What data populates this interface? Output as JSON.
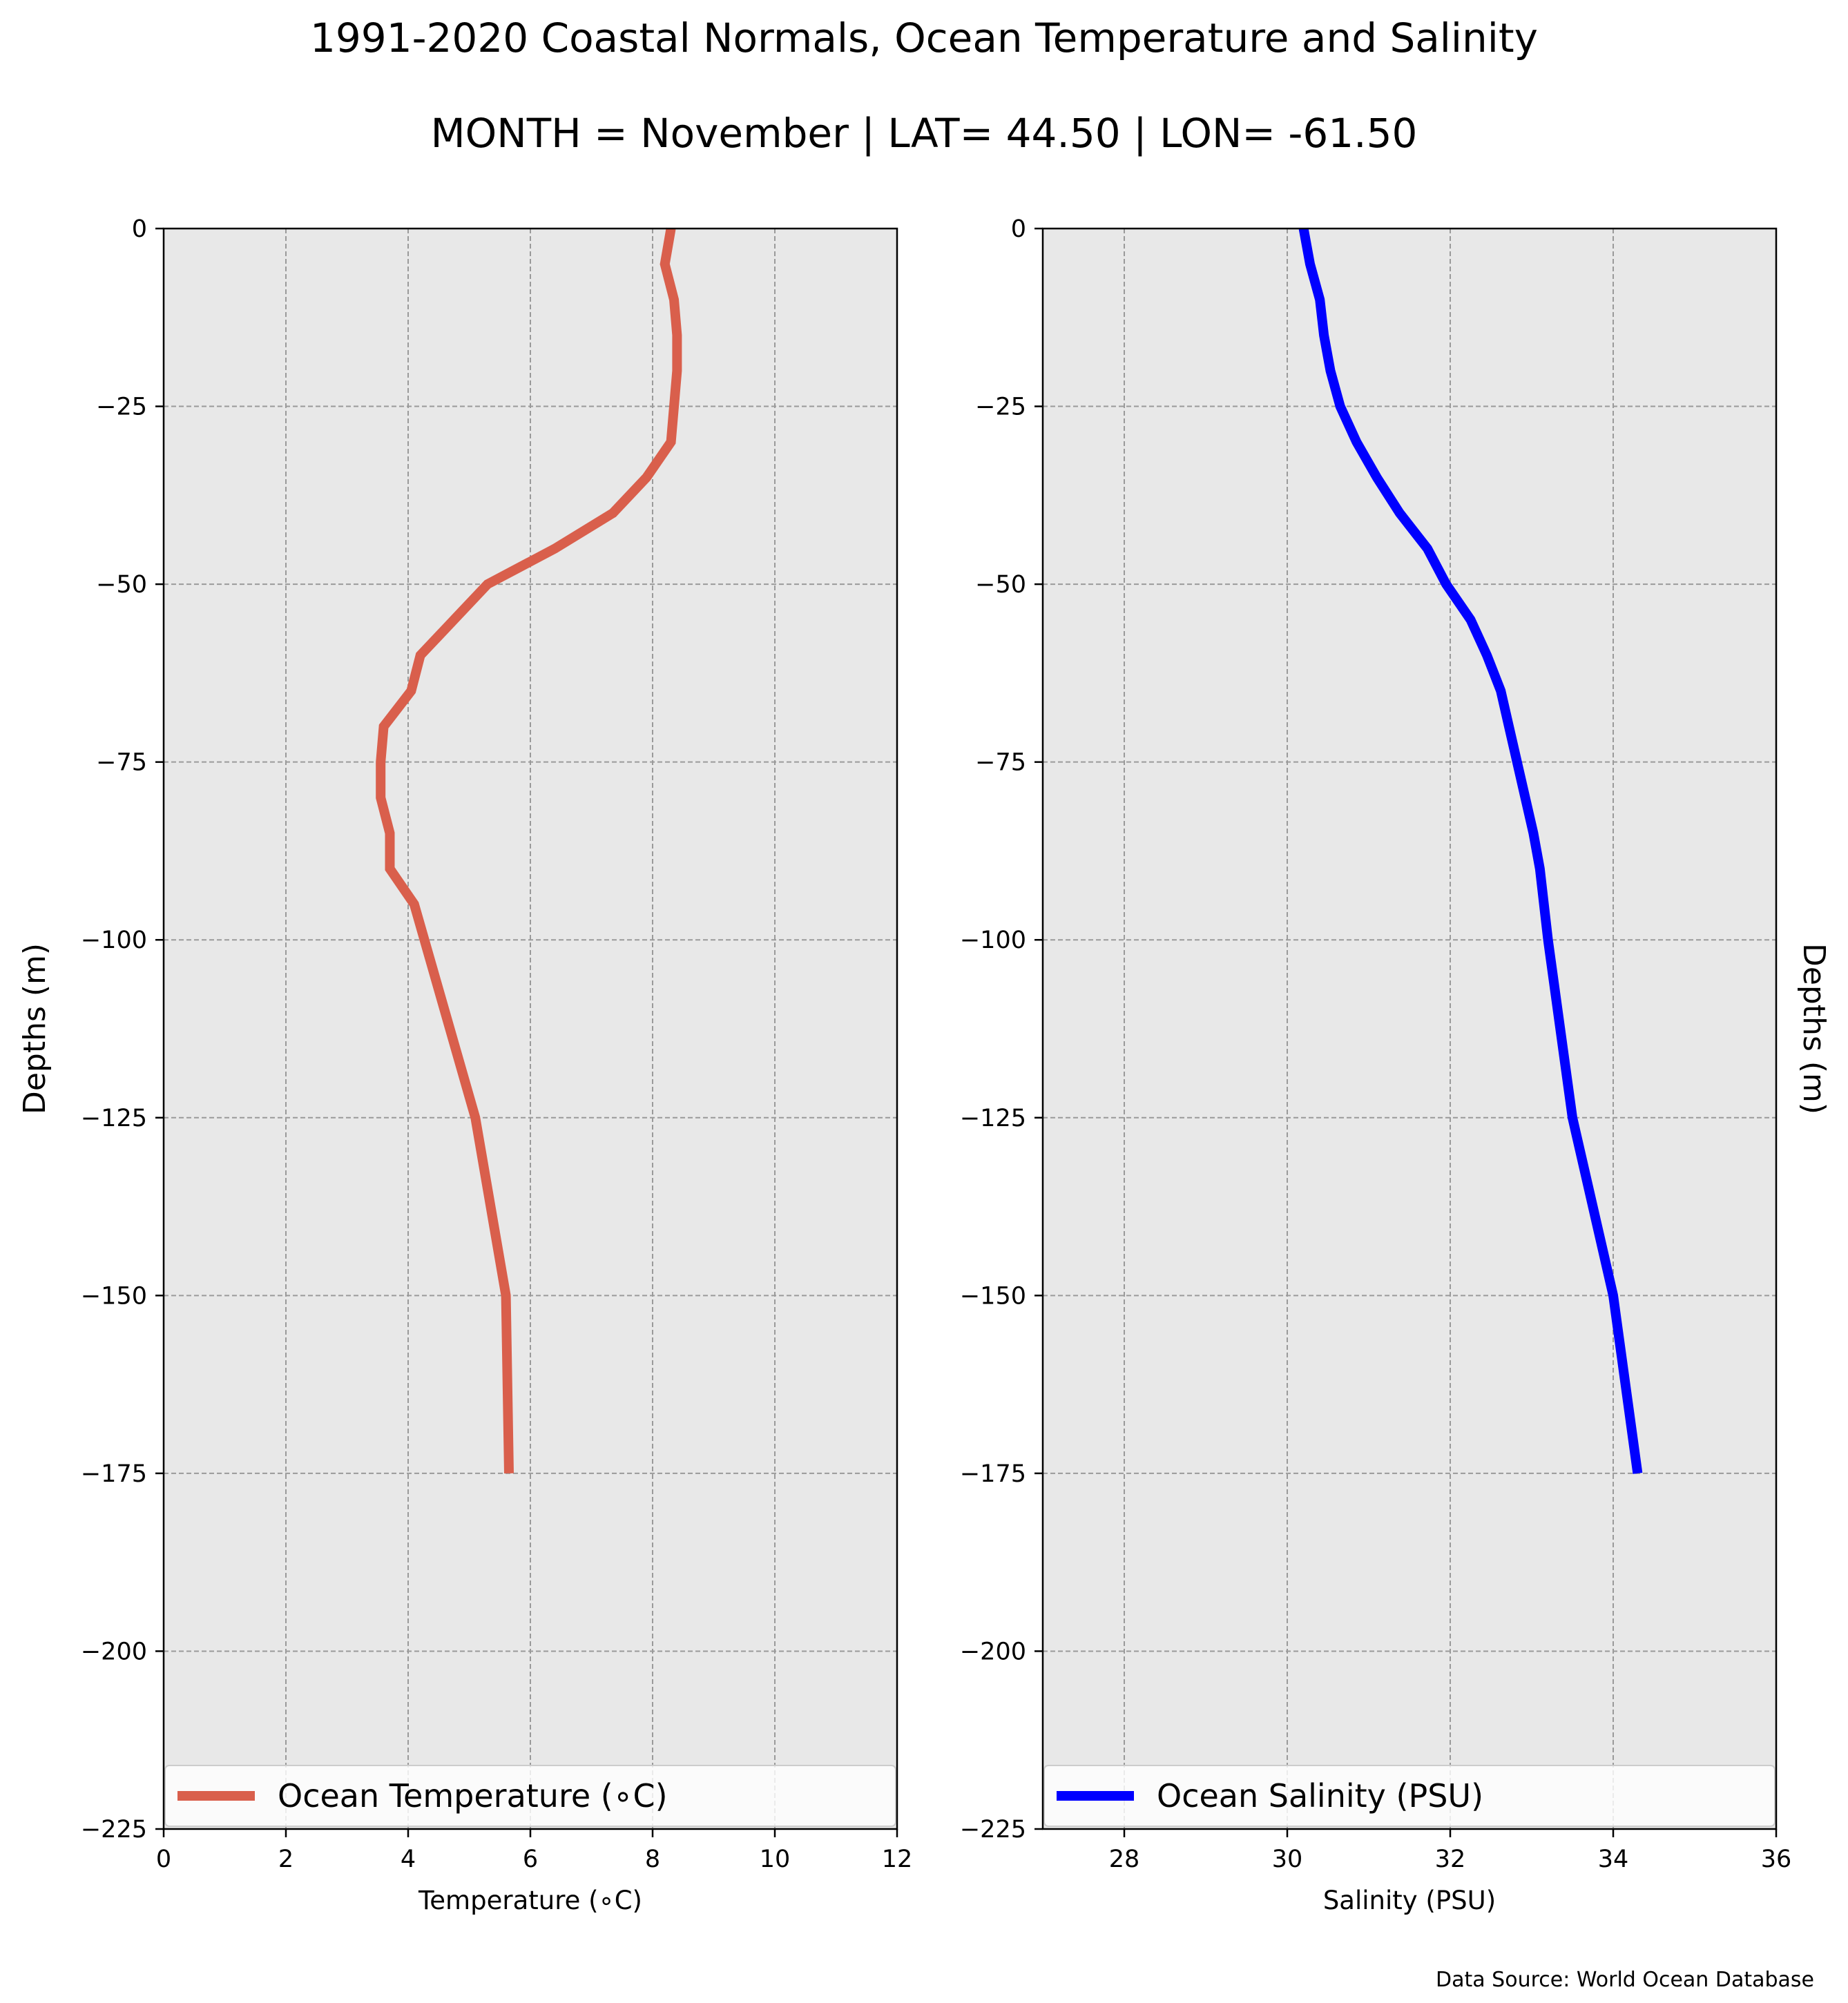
{
  "title_line1": "1991-2020 Coastal Normals, Ocean Temperature and Salinity",
  "title_line2": "MONTH = November | LAT= 44.50 | LON= -61.50",
  "source": "Data Source: World Ocean Database",
  "chart_data": [
    {
      "type": "line",
      "xlabel": "Temperature ($^\\circ$C)",
      "xlabel_display": "Temperature (∘C)",
      "ylabel": "Depths (m)",
      "xlim": [
        0,
        12
      ],
      "ylim": [
        -225,
        0
      ],
      "xticks": [
        0,
        2,
        4,
        6,
        8,
        10,
        12
      ],
      "yticks": [
        0,
        -25,
        -50,
        -75,
        -100,
        -125,
        -150,
        -175,
        -200,
        -225
      ],
      "ytick_labels": [
        "0",
        "−25",
        "−50",
        "−75",
        "−100",
        "−125",
        "−150",
        "−175",
        "−200",
        "−225"
      ],
      "grid": true,
      "legend_position": "lower",
      "series": [
        {
          "name": "Ocean Temperature (∘C)",
          "color": "#d95f4c",
          "x": [
            8.3,
            8.2,
            8.35,
            8.4,
            8.4,
            8.35,
            8.3,
            7.9,
            7.35,
            6.4,
            5.3,
            4.2,
            4.05,
            3.6,
            3.55,
            3.55,
            3.7,
            3.7,
            4.1,
            5.1,
            5.6,
            5.65
          ],
          "y": [
            0,
            -5,
            -10,
            -15,
            -20,
            -25,
            -30,
            -35,
            -40,
            -45,
            -50,
            -60,
            -65,
            -70,
            -75,
            -80,
            -85,
            -90,
            -95,
            -125,
            -150,
            -175
          ]
        }
      ]
    },
    {
      "type": "line",
      "xlabel": "Salinity (PSU)",
      "ylabel": "Depths (m)",
      "xlim": [
        27,
        36
      ],
      "ylim": [
        -225,
        0
      ],
      "xticks": [
        28,
        30,
        32,
        34,
        36
      ],
      "yticks": [
        0,
        -25,
        -50,
        -75,
        -100,
        -125,
        -150,
        -175,
        -200,
        -225
      ],
      "ytick_labels": [
        "0",
        "−25",
        "−50",
        "−75",
        "−100",
        "−125",
        "−150",
        "−175",
        "−200",
        "−225"
      ],
      "grid": true,
      "legend_position": "lower",
      "series": [
        {
          "name": "Ocean Salinity (PSU)",
          "color": "#0000ff",
          "x": [
            30.2,
            30.28,
            30.4,
            30.45,
            30.53,
            30.65,
            30.85,
            31.1,
            31.38,
            31.72,
            31.95,
            32.25,
            32.45,
            32.62,
            32.72,
            32.82,
            32.92,
            33.02,
            33.1,
            33.2,
            33.5,
            34.0,
            34.3
          ],
          "y": [
            0,
            -5,
            -10,
            -15,
            -20,
            -25,
            -30,
            -35,
            -40,
            -45,
            -50,
            -55,
            -60,
            -65,
            -70,
            -75,
            -80,
            -85,
            -90,
            -100,
            -125,
            -150,
            -175
          ]
        }
      ]
    }
  ]
}
